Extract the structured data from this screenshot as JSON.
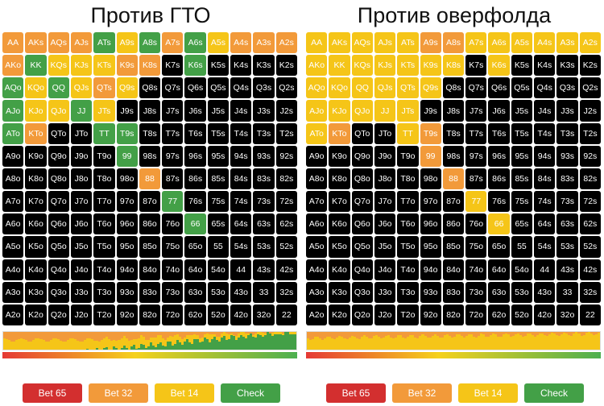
{
  "colors": {
    "bet65": "#d32f2f",
    "bet32": "#f29a3a",
    "bet14": "#f5c518",
    "check": "#43a047",
    "fold": "#000000"
  },
  "ranks": [
    "A",
    "K",
    "Q",
    "J",
    "T",
    "9",
    "8",
    "7",
    "6",
    "5",
    "4",
    "3",
    "2"
  ],
  "buttons": {
    "bet65": "Bet 65",
    "bet32": "Bet 32",
    "bet14": "Bet 14",
    "check": "Check"
  },
  "panels": [
    {
      "title": "Против ГТО",
      "cells": {
        "AA": "bet32",
        "AKs": "bet32",
        "AQs": "bet32",
        "AJs": "bet32",
        "ATs": "check",
        "A9s": "bet14",
        "A8s": "check",
        "A7s": "bet32",
        "A6s": "check",
        "A5s": "bet14",
        "A4s": "bet32",
        "A3s": "bet32",
        "A2s": "bet32",
        "AKo": "bet32",
        "KK": "check",
        "KQs": "bet14",
        "KJs": "bet14",
        "KTs": "bet14",
        "K9s": "bet32",
        "K8s": "bet32",
        "AQo": "check",
        "KQo": "bet14",
        "QQ": "check",
        "QJs": "bet14",
        "QTs": "bet32",
        "Q9s": "bet14",
        "AJo": "check",
        "KJo": "bet14",
        "QJo": "bet14",
        "JJ": "check",
        "JTs": "bet14",
        "ATo": "check",
        "KTo": "bet32",
        "TT": "check",
        "T9s": "check",
        "99": "check",
        "88": "bet32",
        "77": "check",
        "66": "check",
        "K6s": "check"
      },
      "distribution": "gto"
    },
    {
      "title": "Против оверфолда",
      "cells": {
        "AA": "bet14",
        "AKs": "bet14",
        "AQs": "bet14",
        "AJs": "bet14",
        "ATs": "bet14",
        "A9s": "bet32",
        "A8s": "bet32",
        "A7s": "bet14",
        "A6s": "bet14",
        "A5s": "bet14",
        "A4s": "bet14",
        "A3s": "bet14",
        "A2s": "bet14",
        "AKo": "bet14",
        "KK": "bet14",
        "KQs": "bet14",
        "KJs": "bet14",
        "KTs": "bet14",
        "K9s": "bet14",
        "K8s": "bet14",
        "K6s": "bet14",
        "AQo": "bet14",
        "KQo": "bet14",
        "QQ": "bet14",
        "QJs": "bet14",
        "QTs": "bet14",
        "Q9s": "bet14",
        "AJo": "bet14",
        "KJo": "bet14",
        "QJo": "bet14",
        "JJ": "bet14",
        "JTs": "bet14",
        "ATo": "bet14",
        "KTo": "bet32",
        "TT": "bet14",
        "T9s": "bet32",
        "99": "bet32",
        "88": "bet32",
        "77": "bet14",
        "66": "bet14"
      },
      "distribution": "overfold"
    }
  ]
}
